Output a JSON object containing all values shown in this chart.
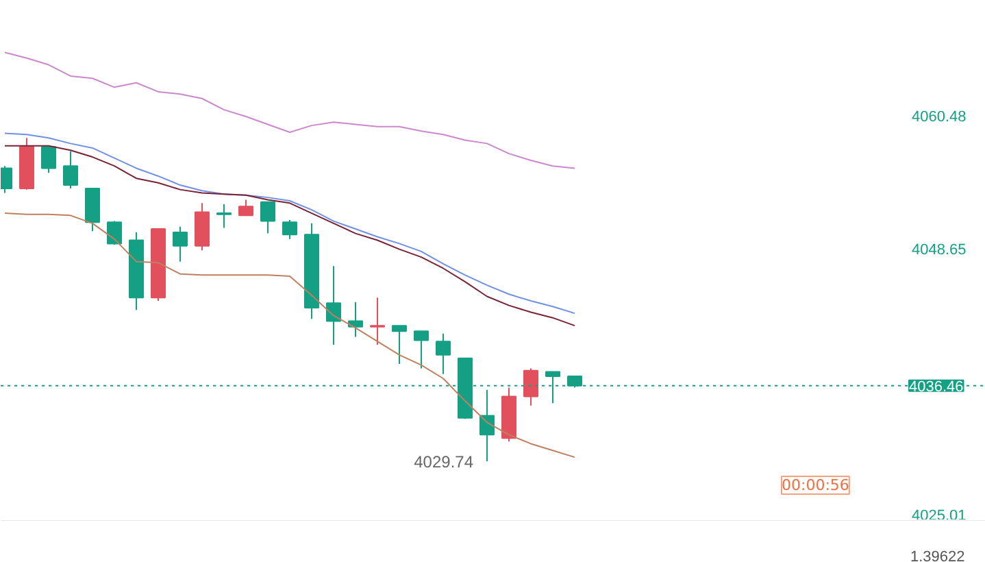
{
  "chart_data": {
    "type": "candlestick",
    "categories": [
      null,
      null,
      null,
      null,
      null,
      null,
      null,
      null,
      null,
      null,
      null,
      null,
      null,
      null,
      null,
      null,
      null,
      null,
      null,
      null,
      null,
      null,
      null,
      null,
      null,
      null,
      null
    ],
    "ohlc": [
      [
        4055.8,
        4056.0,
        4053.6,
        4054.0
      ],
      [
        4054.0,
        4058.5,
        4053.9,
        4057.7
      ],
      [
        4057.7,
        4057.7,
        4055.4,
        4055.8
      ],
      [
        4056.0,
        4057.3,
        4054.0,
        4054.3
      ],
      [
        4054.0,
        4054.0,
        4050.2,
        4051.0
      ],
      [
        4051.0,
        4051.1,
        4049.0,
        4049.1
      ],
      [
        4049.4,
        4050.1,
        4043.2,
        4044.3
      ],
      [
        4044.3,
        4050.4,
        4044.0,
        4050.4
      ],
      [
        4050.1,
        4050.6,
        4047.5,
        4048.9
      ],
      [
        4048.9,
        4052.7,
        4048.5,
        4051.9
      ],
      [
        4051.8,
        4052.6,
        4050.5,
        4051.7
      ],
      [
        4051.6,
        4053.0,
        4051.6,
        4052.4
      ],
      [
        4052.8,
        4052.8,
        4050.0,
        4051.1
      ],
      [
        4051.0,
        4051.2,
        4049.5,
        4049.9
      ],
      [
        4049.9,
        4050.9,
        4042.4,
        4043.4
      ],
      [
        4043.8,
        4047.1,
        4040.1,
        4042.2
      ],
      [
        4042.2,
        4043.9,
        4040.8,
        4041.7
      ],
      [
        4041.7,
        4044.3,
        4040.1,
        4041.8
      ],
      [
        4041.8,
        4041.8,
        4038.4,
        4041.3
      ],
      [
        4041.3,
        4041.3,
        4038.0,
        4040.5
      ],
      [
        4040.4,
        4041.1,
        4037.5,
        4039.2
      ],
      [
        4038.9,
        4038.9,
        4033.5,
        4033.6
      ],
      [
        4033.8,
        4036.1,
        4029.74,
        4032.1
      ],
      [
        4031.8,
        4036.3,
        4031.5,
        4035.5
      ],
      [
        4035.5,
        4038.0,
        4034.7,
        4037.8
      ],
      [
        4037.7,
        4037.7,
        4034.9,
        4037.3
      ],
      [
        4037.3,
        4037.3,
        4036.3,
        4036.46
      ]
    ],
    "colors": [
      "#14a085",
      "#e2505e",
      "#14a085",
      "#14a085",
      "#14a085",
      "#14a085",
      "#14a085",
      "#e2505e",
      "#14a085",
      "#e2505e",
      "#14a085",
      "#e2505e",
      "#14a085",
      "#14a085",
      "#14a085",
      "#14a085",
      "#14a085",
      "#e2505e",
      "#14a085",
      "#14a085",
      "#14a085",
      "#14a085",
      "#14a085",
      "#e2505e",
      "#e2505e",
      "#14a085",
      "#14a085"
    ],
    "series": [
      {
        "type": "line",
        "color": "#cc88cc",
        "values": [
          4066.1,
          4065.6,
          4065.0,
          4064.0,
          4063.8,
          4063.0,
          4063.4,
          4062.6,
          4062.4,
          4062.0,
          4061.0,
          4060.4,
          4059.7,
          4059.0,
          4059.6,
          4059.9,
          4059.7,
          4059.5,
          4059.5,
          4059.1,
          4058.8,
          4058.3,
          4058.0,
          4057.1,
          4056.5,
          4056.0,
          4055.8
        ]
      },
      {
        "type": "line",
        "color": "#7090e8",
        "values": [
          4058.9,
          4058.8,
          4058.5,
          4058.0,
          4057.6,
          4056.7,
          4055.8,
          4055.1,
          4054.3,
          4053.8,
          4053.5,
          4053.4,
          4053.2,
          4052.9,
          4052.1,
          4051.1,
          4050.4,
          4049.7,
          4049.1,
          4048.4,
          4047.3,
          4046.3,
          4045.4,
          4044.6,
          4044.0,
          4043.5,
          4042.9
        ]
      },
      {
        "type": "line",
        "color": "#7a2235",
        "values": [
          4057.8,
          4057.8,
          4057.8,
          4057.4,
          4056.8,
          4056.0,
          4054.9,
          4054.5,
          4053.9,
          4053.6,
          4053.5,
          4053.4,
          4053.0,
          4052.7,
          4051.8,
          4050.9,
          4050.0,
          4049.4,
          4048.6,
          4047.9,
          4046.9,
          4045.7,
          4044.4,
          4043.6,
          4043.0,
          4042.5,
          4041.8
        ]
      },
      {
        "type": "line",
        "color": "#c08060",
        "values": [
          4051.8,
          4051.7,
          4051.7,
          4051.6,
          4050.9,
          4049.5,
          4047.5,
          4047.4,
          4046.4,
          4046.3,
          4046.3,
          4046.3,
          4046.3,
          4046.2,
          4044.5,
          4042.7,
          4041.6,
          4040.4,
          4039.2,
          4038.3,
          4037.1,
          4035.1,
          4033.2,
          4032.1,
          4031.3,
          4030.7,
          4030.1
        ]
      }
    ],
    "ylim": [
      4024.5,
      4070.7
    ],
    "yticks": [
      4060.48,
      4048.65,
      4025.01
    ],
    "tick_labels": "y",
    "ref_lines": [
      {
        "axis": "y",
        "value": 4036.46,
        "label": "4036.46",
        "color": "#14a085",
        "line_style": "dotted"
      }
    ],
    "annotations": [
      "4029.74",
      "00:00:56",
      "1.39622"
    ]
  }
}
